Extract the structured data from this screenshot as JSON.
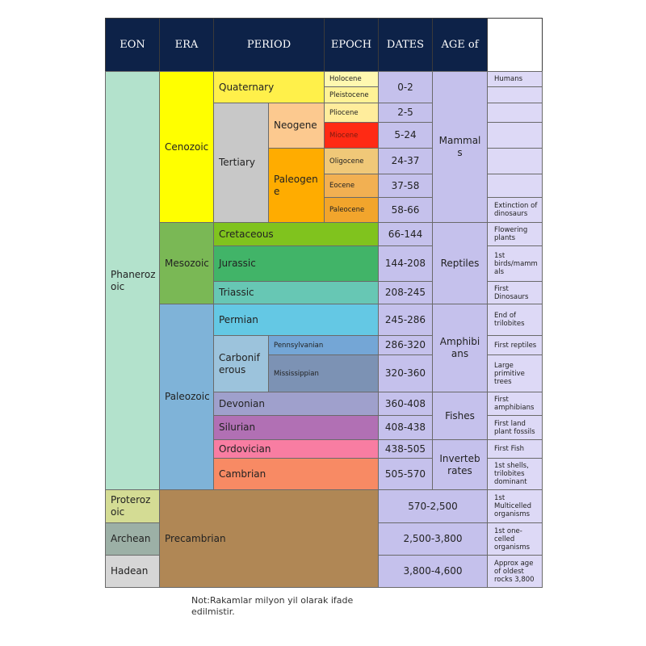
{
  "headers": {
    "eon": "EON",
    "era": "ERA",
    "period": "PERIOD",
    "epoch": "EPOCH",
    "dates": "DATES",
    "age_of": "AGE of"
  },
  "eons": {
    "phanerozoic": "Phaneroz oic",
    "proterozoic": "Proteroz oic",
    "archean": "Archean",
    "hadean": "Hadean"
  },
  "eras": {
    "cenozoic": "Cenozoic",
    "mesozoic": "Mesozoic",
    "paleozoic": "Paleozoic",
    "precambrian": "Precambrian"
  },
  "periods": {
    "quaternary": "Quaternary",
    "tertiary": "Tertiary",
    "neogene": "Neogene",
    "paleogene": "Paleogen e",
    "cretaceous": "Cretaceous",
    "jurassic": "Jurassic",
    "triassic": "Triassic",
    "permian": "Permian",
    "carboniferous": "Carbonif erous",
    "pennsylvanian": "Pennsylvanian",
    "mississippian": "Mississippian",
    "devonian": "Devonian",
    "silurian": "Silurian",
    "ordovician": "Ordovician",
    "cambrian": "Cambrian"
  },
  "epochs": {
    "holocene": "Holocene",
    "pleistocene": "Pleistocene",
    "pliocene": "Pliocene",
    "miocene": "Miocene",
    "oligocene": "Oligocene",
    "eocene": "Eocene",
    "paleocene": "Paleocene"
  },
  "dates": {
    "d0": "0-2",
    "d1": "2-5",
    "d2": "5-24",
    "d3": "24-37",
    "d4": "37-58",
    "d5": "58-66",
    "d6": "66-144",
    "d7": "144-208",
    "d8": "208-245",
    "d9": "245-286",
    "d10": "286-320",
    "d11": "320-360",
    "d12": "360-408",
    "d13": "408-438",
    "d14": "438-505",
    "d15": "505-570",
    "d16": "570-2,500",
    "d17": "2,500-3,800",
    "d18": "3,800-4,600"
  },
  "ages": {
    "mammals": "Mammal s",
    "reptiles": "Reptiles",
    "amphibians": "Amphibi ans",
    "fishes": "Fishes",
    "invertebrates": "Inverteb rates"
  },
  "events": {
    "humans": "Humans",
    "extinction_dinosaurs": "Extinction of dinosaurs",
    "flowering_plants": "Flowering plants",
    "first_birds": "1st birds/mamm als",
    "first_dinosaurs": "First Dinosaurs",
    "end_trilobites": "End of trilobites",
    "first_reptiles": "First reptiles",
    "large_trees": "Large primitive trees",
    "first_amphibians": "First amphibians",
    "first_land_plants": "First land plant fossils",
    "first_fish": "First Fish",
    "shells_trilobites": "1st shells, trilobites dominant",
    "multicelled": "1st Multicelled organisms",
    "one_celled": "1st one-celled organisms",
    "oldest_rocks": "Approx age of oldest rocks 3,800"
  },
  "note": "Not:Rakamlar milyon yil olarak ifade edilmistir."
}
